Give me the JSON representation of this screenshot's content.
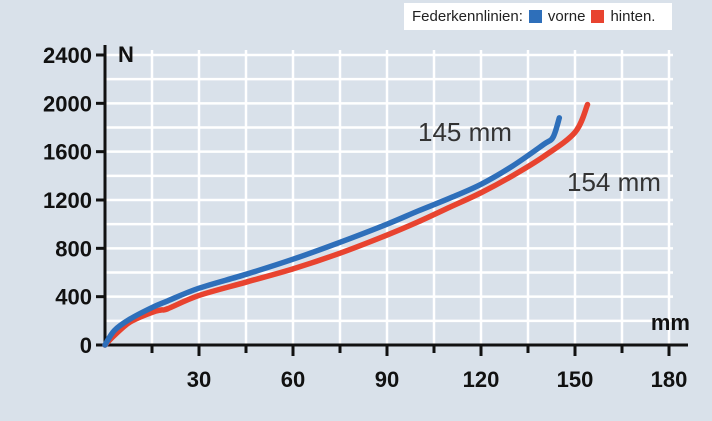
{
  "legend": {
    "prefix": "Federkennlinien:",
    "items": [
      {
        "label": "vorne",
        "color": "#2e6fba"
      },
      {
        "label": "hinten.",
        "color": "#e8432f"
      }
    ]
  },
  "chart_data": {
    "type": "line",
    "ylabel": "N",
    "xlabel": "mm",
    "xlim": [
      0,
      180
    ],
    "ylim": [
      0,
      2400
    ],
    "x_ticks": [
      30,
      60,
      90,
      120,
      150,
      180
    ],
    "y_ticks": [
      0,
      400,
      800,
      1200,
      1600,
      2000,
      2400
    ],
    "grid": true,
    "legend_position": "top-right",
    "series": [
      {
        "name": "vorne",
        "color": "#2e6fba",
        "points": [
          [
            0,
            0
          ],
          [
            3,
            120
          ],
          [
            8,
            215
          ],
          [
            15,
            310
          ],
          [
            20,
            365
          ],
          [
            30,
            470
          ],
          [
            45,
            585
          ],
          [
            60,
            710
          ],
          [
            75,
            850
          ],
          [
            90,
            1000
          ],
          [
            100,
            1110
          ],
          [
            110,
            1215
          ],
          [
            120,
            1330
          ],
          [
            130,
            1480
          ],
          [
            140,
            1660
          ],
          [
            143,
            1720
          ],
          [
            145,
            1880
          ]
        ],
        "end_label": "145 mm"
      },
      {
        "name": "hinten.",
        "color": "#e8432f",
        "points": [
          [
            0,
            0
          ],
          [
            3,
            80
          ],
          [
            8,
            190
          ],
          [
            15,
            270
          ],
          [
            18,
            290
          ],
          [
            20,
            300
          ],
          [
            30,
            410
          ],
          [
            45,
            520
          ],
          [
            60,
            630
          ],
          [
            75,
            760
          ],
          [
            90,
            910
          ],
          [
            100,
            1020
          ],
          [
            110,
            1140
          ],
          [
            120,
            1260
          ],
          [
            130,
            1400
          ],
          [
            140,
            1560
          ],
          [
            150,
            1760
          ],
          [
            154,
            1990
          ]
        ],
        "end_label": "154 mm"
      }
    ]
  }
}
